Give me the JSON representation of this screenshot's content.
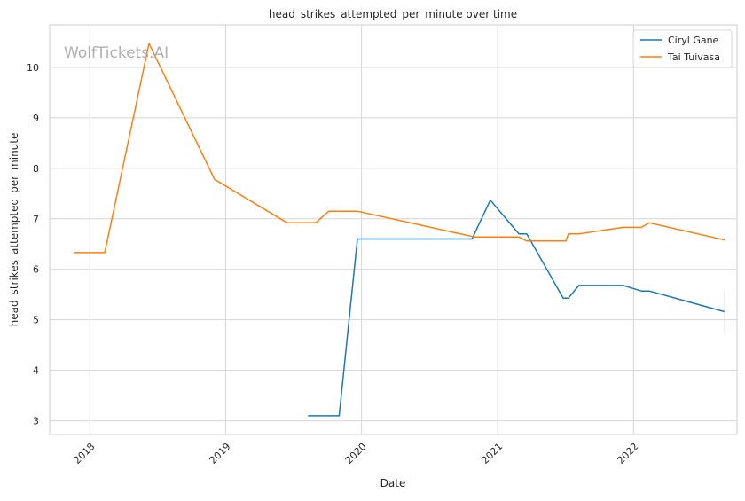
{
  "chart_data": {
    "type": "line",
    "title": "head_strikes_attempted_per_minute over time",
    "xlabel": "Date",
    "ylabel": "head_strikes_attempted_per_minute",
    "watermark": "WolfTickets.AI",
    "x_range": [
      "2017-09-15",
      "2022-10-06"
    ],
    "ylim": [
      2.73,
      10.84
    ],
    "y_ticks": [
      3,
      4,
      5,
      6,
      7,
      8,
      9,
      10
    ],
    "x_ticks": [
      {
        "label": "2018",
        "date": "2018-01-01"
      },
      {
        "label": "2019",
        "date": "2019-01-01"
      },
      {
        "label": "2020",
        "date": "2020-01-01"
      },
      {
        "label": "2021",
        "date": "2021-01-01"
      },
      {
        "label": "2022",
        "date": "2022-01-01"
      }
    ],
    "grid": true,
    "legend_position": "top-right",
    "series": [
      {
        "name": "Ciryl Gane",
        "color": "#1f77b4",
        "points": [
          {
            "x": "2019-08-10",
            "y": 3.1
          },
          {
            "x": "2019-11-02",
            "y": 3.1
          },
          {
            "x": "2019-12-21",
            "y": 6.6
          },
          {
            "x": "2020-10-24",
            "y": 6.6
          },
          {
            "x": "2020-12-12",
            "y": 7.37
          },
          {
            "x": "2021-02-27",
            "y": 6.7
          },
          {
            "x": "2021-03-20",
            "y": 6.7
          },
          {
            "x": "2021-06-26",
            "y": 5.43
          },
          {
            "x": "2021-07-10",
            "y": 5.43
          },
          {
            "x": "2021-08-07",
            "y": 5.68
          },
          {
            "x": "2021-12-04",
            "y": 5.68
          },
          {
            "x": "2022-01-22",
            "y": 5.57
          },
          {
            "x": "2022-02-12",
            "y": 5.57
          },
          {
            "x": "2022-09-03",
            "y": 5.16
          }
        ],
        "error_bar": {
          "x": "2022-09-03",
          "low": 4.75,
          "high": 5.57
        }
      },
      {
        "name": "Tai Tuivasa",
        "color": "#ff7f0e",
        "points": [
          {
            "x": "2017-11-19",
            "y": 6.33
          },
          {
            "x": "2018-02-10",
            "y": 6.33
          },
          {
            "x": "2018-06-09",
            "y": 10.47
          },
          {
            "x": "2018-12-02",
            "y": 7.78
          },
          {
            "x": "2019-06-15",
            "y": 6.92
          },
          {
            "x": "2019-08-31",
            "y": 6.92
          },
          {
            "x": "2019-10-05",
            "y": 7.15
          },
          {
            "x": "2019-12-21",
            "y": 7.15
          },
          {
            "x": "2020-10-31",
            "y": 6.64
          },
          {
            "x": "2021-02-27",
            "y": 6.64
          },
          {
            "x": "2021-03-20",
            "y": 6.56
          },
          {
            "x": "2021-07-03",
            "y": 6.56
          },
          {
            "x": "2021-07-10",
            "y": 6.7
          },
          {
            "x": "2021-08-07",
            "y": 6.7
          },
          {
            "x": "2021-12-04",
            "y": 6.83
          },
          {
            "x": "2022-01-22",
            "y": 6.83
          },
          {
            "x": "2022-02-12",
            "y": 6.92
          },
          {
            "x": "2022-09-03",
            "y": 6.58
          }
        ]
      }
    ]
  }
}
